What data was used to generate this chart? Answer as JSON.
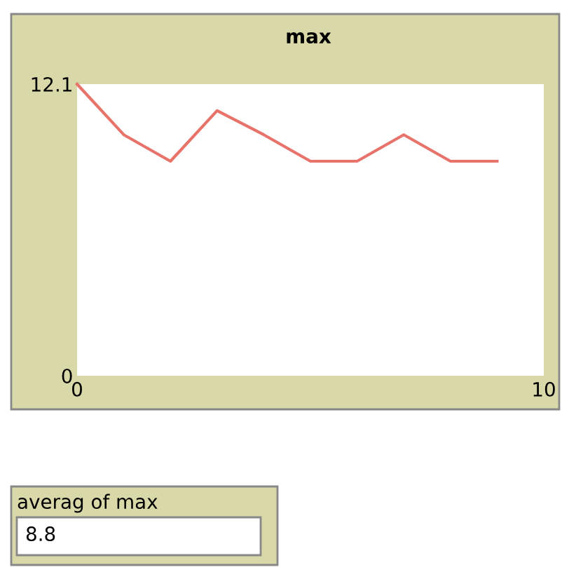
{
  "chart_data": {
    "type": "line",
    "title": "max",
    "x": [
      0,
      1,
      2,
      3,
      4,
      5,
      6,
      7,
      8,
      9
    ],
    "series": [
      {
        "color": "#e8736b",
        "values": [
          12.1,
          10.0,
          8.9,
          11.0,
          10.0,
          8.9,
          8.9,
          10.0,
          8.9,
          8.9
        ]
      }
    ],
    "xlim": [
      0,
      10
    ],
    "ylim": [
      0,
      12.1
    ],
    "xticks": [
      0,
      10
    ],
    "yticks": [
      0,
      12.1
    ],
    "grid": false,
    "marker": "none",
    "line_style": "solid",
    "annotations": [
      "averag of max",
      "8.8"
    ]
  }
}
